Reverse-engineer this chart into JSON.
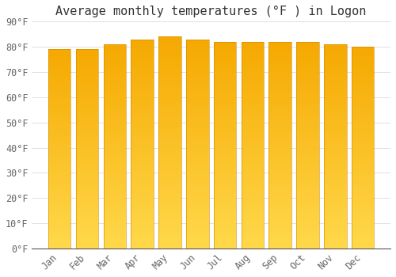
{
  "title": "Average monthly temperatures (°F ) in Logon",
  "months": [
    "Jan",
    "Feb",
    "Mar",
    "Apr",
    "May",
    "Jun",
    "Jul",
    "Aug",
    "Sep",
    "Oct",
    "Nov",
    "Dec"
  ],
  "values": [
    79,
    79,
    81,
    83,
    84,
    83,
    82,
    82,
    82,
    82,
    81,
    80
  ],
  "ylim": [
    0,
    90
  ],
  "yticks": [
    0,
    10,
    20,
    30,
    40,
    50,
    60,
    70,
    80,
    90
  ],
  "ytick_labels": [
    "0°F",
    "10°F",
    "20°F",
    "30°F",
    "40°F",
    "50°F",
    "60°F",
    "70°F",
    "80°F",
    "90°F"
  ],
  "bar_color_bottom": "#FFD84A",
  "bar_color_top": "#F5A800",
  "background_color": "#FFFFFF",
  "grid_color": "#E0E0E0",
  "title_fontsize": 11,
  "tick_fontsize": 8.5,
  "bar_width": 0.82
}
